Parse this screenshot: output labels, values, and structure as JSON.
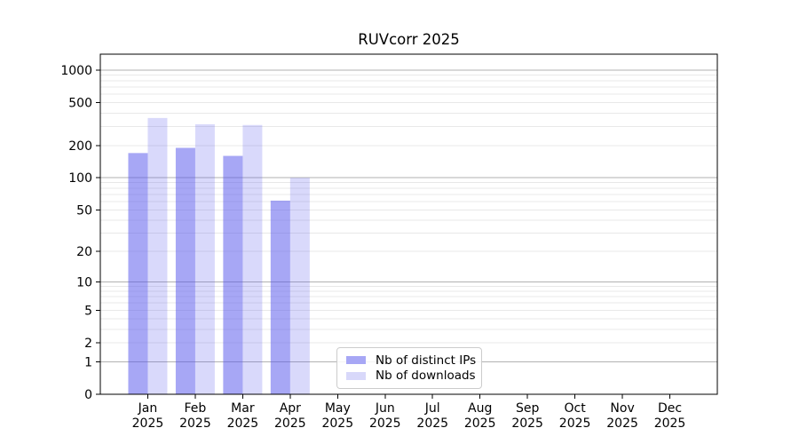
{
  "page": {
    "background": "#ffffff"
  },
  "chart_data": {
    "type": "bar",
    "title": "RUVcorr 2025",
    "categories": [
      "Jan",
      "Feb",
      "Mar",
      "Apr",
      "May",
      "Jun",
      "Jul",
      "Aug",
      "Sep",
      "Oct",
      "Nov",
      "Dec"
    ],
    "x_tick_second_line": "2025",
    "series": [
      {
        "name": "Nb of distinct IPs",
        "values": [
          170,
          190,
          160,
          61,
          0,
          0,
          0,
          0,
          0,
          0,
          0,
          0
        ],
        "bar_fill": "rgba(80,80,235,0.5)",
        "legend_swatch_color": "#a7a7f5"
      },
      {
        "name": "Nb of downloads",
        "values": [
          360,
          315,
          310,
          100,
          0,
          0,
          0,
          0,
          0,
          0,
          0,
          0
        ],
        "bar_fill": "rgba(80,80,235,0.22)",
        "legend_swatch_color": "#d8d8fa"
      }
    ],
    "y_axis": {
      "scale": "log10(1+y)",
      "tick_values": [
        0,
        1,
        2,
        5,
        10,
        20,
        50,
        100,
        200,
        500,
        1000
      ],
      "top_value": 1406
    },
    "grid": {
      "major_lines": [
        1,
        10,
        100,
        1000
      ],
      "minor_decades": [
        1,
        10,
        100
      ],
      "major_color": "#b2b2b2",
      "minor_color": "#e8e8e8"
    },
    "axis_color": "#000000",
    "legend_location": "lower center"
  }
}
